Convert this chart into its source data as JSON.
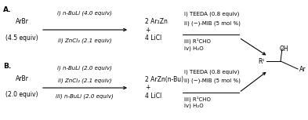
{
  "bg_color": "#ffffff",
  "fig_width": 3.93,
  "fig_height": 1.53,
  "dpi": 100,
  "label_A": "A.",
  "label_B": "B.",
  "arBr_A_line1": "ArBr",
  "arBr_A_line2": "(4.5 equiv)",
  "arBr_B_line1": "ArBr",
  "arBr_B_line2": "(2.0 equiv)",
  "steps_A_above": "i) n-BuLi (4.0 equiv)",
  "steps_A_below": "ii) ZnCl₂ (2.1 equiv)",
  "steps_B_above": "i) n-BuLi (2.0 equiv)",
  "steps_B_mid": "ii) ZnCl₂ (2.1 equiv)",
  "steps_B_below": "iii) n-BuLi (2.0 equiv)",
  "product_A_line1": "2 Ar₂Zn",
  "product_A_line2": "+",
  "product_A_line3": "4 LiCl",
  "product_B_line1": "2 ArZn(n-Bu)",
  "product_B_line2": "+",
  "product_B_line3": "4 LiCl",
  "cond_A_top1": "i) TEEDA (0.8 equiv)",
  "cond_A_top2": "ii) (−)-MIB (5 mol %)",
  "cond_A_bot1": "iii) R¹CHO",
  "cond_A_bot2": "iv) H₂O",
  "cond_B_top1": "i) TEEDA (0.8 equiv)",
  "cond_B_top2": "ii) (−)-MIB (5 mol %)",
  "cond_B_bot1": "iii) R¹CHO",
  "cond_B_bot2": "iv) H₂O",
  "final_OH": "OH",
  "final_R1": "R¹",
  "final_Ar": "Ar"
}
